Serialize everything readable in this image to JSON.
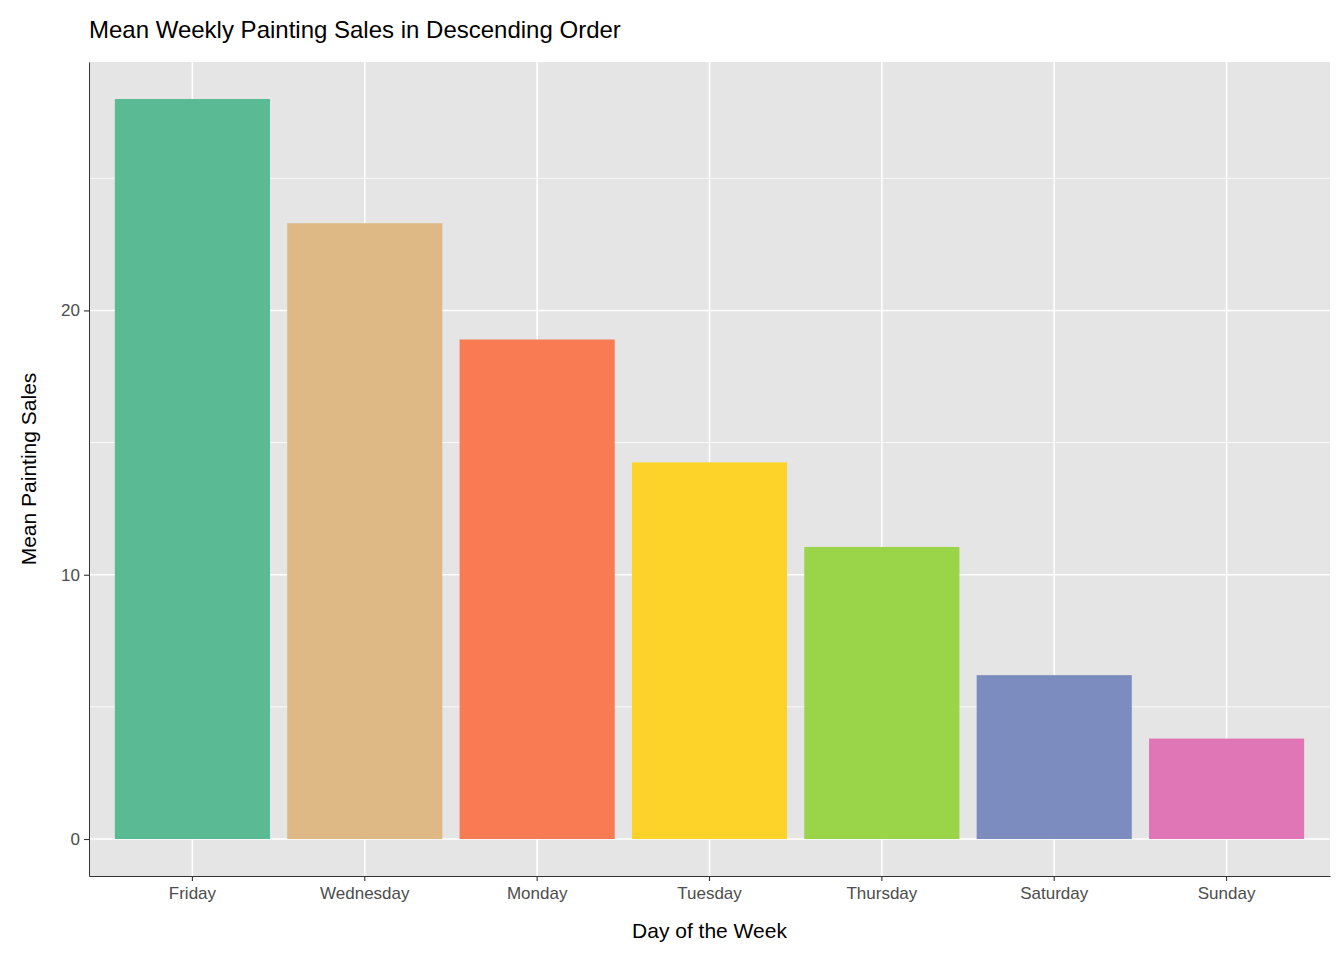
{
  "chart_data": {
    "type": "bar",
    "title": "Mean Weekly Painting Sales in Descending Order",
    "x_label": "Day of the Week",
    "y_label": "Mean Painting Sales",
    "categories": [
      "Friday",
      "Wednesday",
      "Monday",
      "Tuesday",
      "Thursday",
      "Saturday",
      "Sunday"
    ],
    "values": [
      28.0,
      23.3,
      18.9,
      14.25,
      11.05,
      6.2,
      3.8
    ],
    "colors": [
      "#59BA93",
      "#DEB885",
      "#F87B53",
      "#FDD329",
      "#9AD448",
      "#7D8CBF",
      "#E176B6"
    ],
    "ylim": [
      -1.4,
      29.4
    ],
    "yticks": [
      0,
      10,
      20
    ],
    "grid": true
  }
}
